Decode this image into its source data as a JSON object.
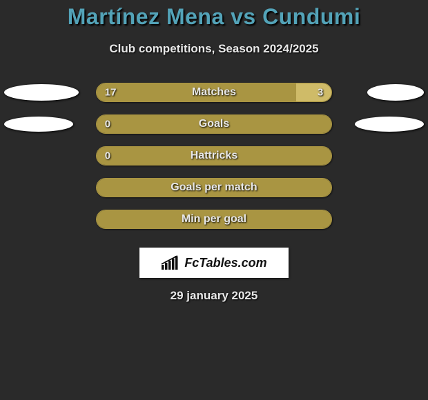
{
  "title": "Martínez Mena vs Cundumi",
  "subtitle": "Club competitions, Season 2024/2025",
  "date": "29 january 2025",
  "logo_text": "FcTables.com",
  "colors": {
    "background": "#2a2a2a",
    "title": "#53a3b8",
    "text": "#e8e8e8",
    "bar_left": "#a99542",
    "bar_right": "#cfbb68",
    "bar_border": "#a99542",
    "oval": "#ffffff",
    "logo_bg": "#ffffff"
  },
  "rows": [
    {
      "label": "Matches",
      "left_value": "17",
      "right_value": "3",
      "left_pct": 85,
      "right_pct": 15,
      "oval_left": {
        "w": 108,
        "h": 24
      },
      "oval_right": {
        "w": 82,
        "h": 24
      }
    },
    {
      "label": "Goals",
      "left_value": "0",
      "right_value": "",
      "left_pct": 100,
      "right_pct": 0,
      "oval_left": {
        "w": 100,
        "h": 22
      },
      "oval_right": {
        "w": 100,
        "h": 22
      }
    },
    {
      "label": "Hattricks",
      "left_value": "0",
      "right_value": "",
      "left_pct": 100,
      "right_pct": 0,
      "oval_left": null,
      "oval_right": null
    },
    {
      "label": "Goals per match",
      "left_value": "",
      "right_value": "",
      "left_pct": 100,
      "right_pct": 0,
      "oval_left": null,
      "oval_right": null
    },
    {
      "label": "Min per goal",
      "left_value": "",
      "right_value": "",
      "left_pct": 100,
      "right_pct": 0,
      "oval_left": null,
      "oval_right": null
    }
  ]
}
